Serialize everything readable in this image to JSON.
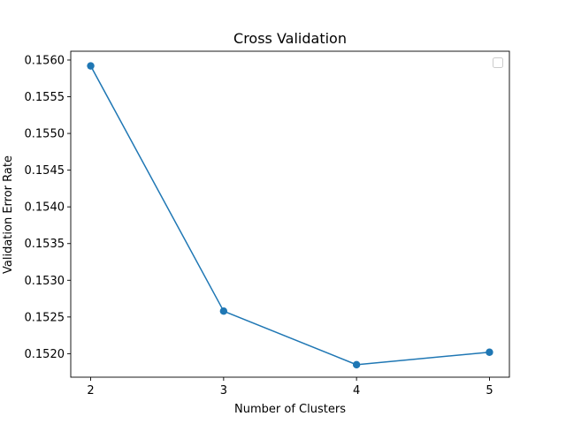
{
  "chart_data": {
    "type": "line",
    "title": "Cross Validation",
    "xlabel": "Number of Clusters",
    "ylabel": "Validation Error Rate",
    "x": [
      2,
      3,
      4,
      5
    ],
    "series": [
      {
        "values": [
          0.15592,
          0.15258,
          0.15185,
          0.15202
        ]
      }
    ],
    "xticks": [
      "2",
      "3",
      "4",
      "5"
    ],
    "yticks": [
      "0.1520",
      "0.1525",
      "0.1530",
      "0.1535",
      "0.1540",
      "0.1545",
      "0.1550",
      "0.1555",
      "0.1560"
    ],
    "xlim": [
      1.85,
      5.15
    ],
    "ylim": [
      0.15168,
      0.15612
    ],
    "grid": false,
    "legend": "top-right (empty)",
    "marker": "circle",
    "colors": {
      "series": "#1f77b4",
      "axes": "#000000",
      "background": "#ffffff"
    }
  }
}
